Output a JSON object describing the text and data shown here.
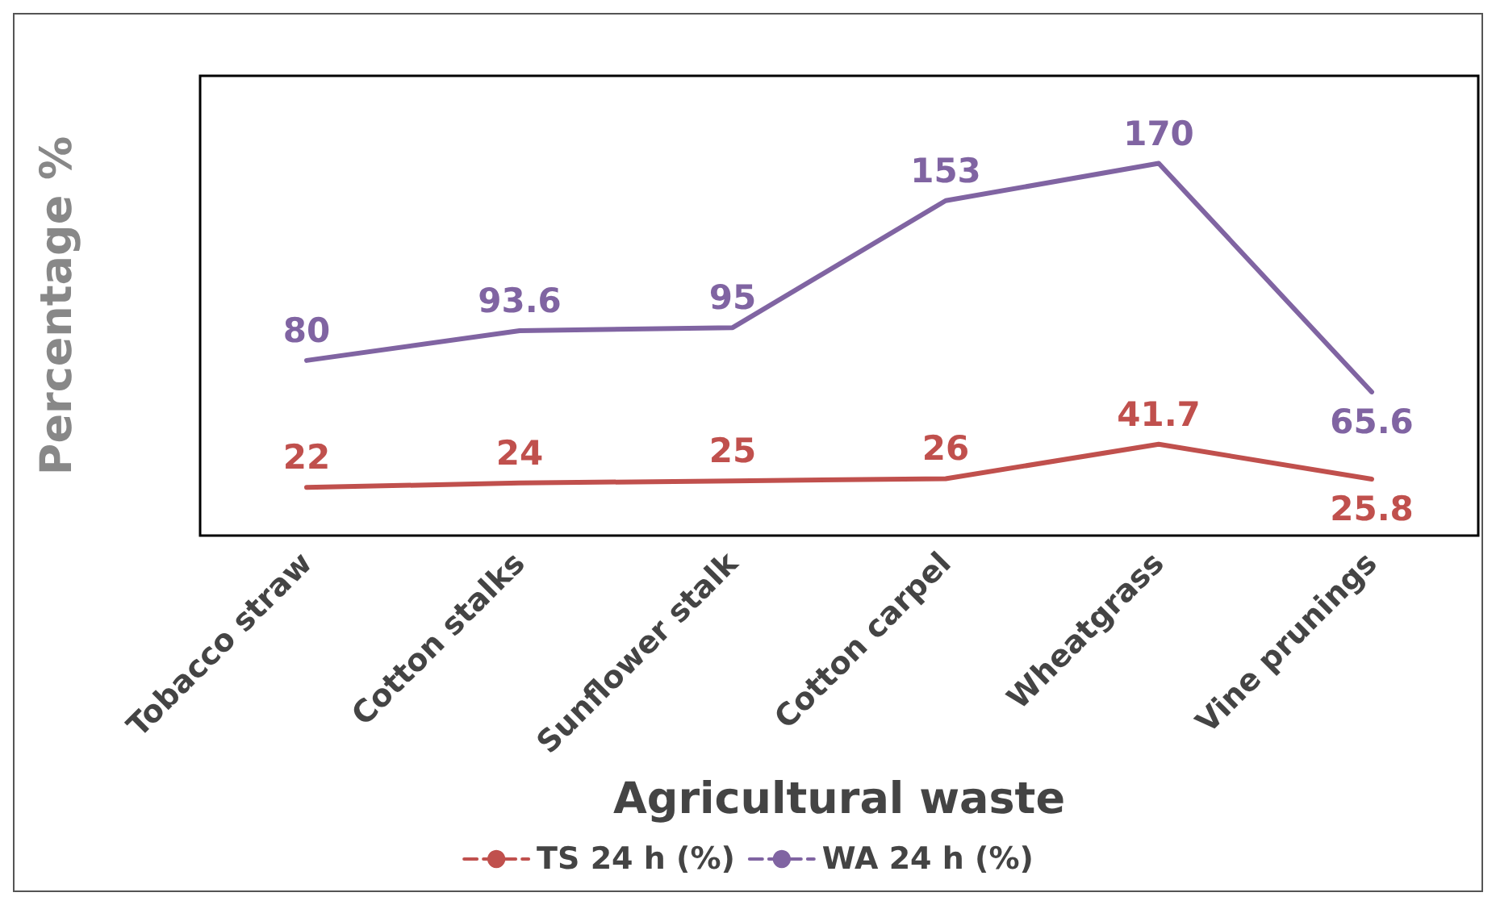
{
  "chart_data": {
    "type": "line",
    "xlabel": "Agricultural waste",
    "ylabel": "Percentage %",
    "categories": [
      "Tobacco straw",
      "Cotton stalks",
      "Sunflower stalk",
      "Cotton carpel",
      "Wheatgrass",
      "Vine prunings"
    ],
    "series": [
      {
        "name": "TS 24 h (%)",
        "color": "#c0504d",
        "values": [
          22,
          24,
          25,
          26,
          41.7,
          25.8
        ]
      },
      {
        "name": "WA 24 h (%)",
        "color": "#8064a2",
        "values": [
          80,
          93.6,
          95,
          153,
          170,
          65.6
        ]
      }
    ],
    "data_labels": true,
    "tick_labels": "x",
    "grid": false,
    "legend": "bottom",
    "marker": "none",
    "line_style": "solid"
  }
}
